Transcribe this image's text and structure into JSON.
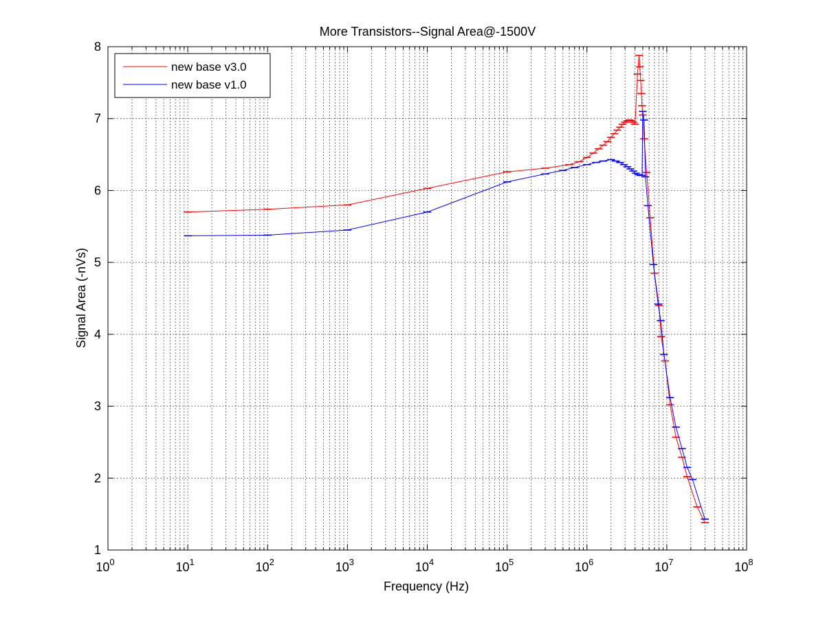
{
  "chart_data": {
    "type": "line",
    "title": "More Transistors--Signal Area@-1500V",
    "xlabel": "Frequency (Hz)",
    "ylabel": "Signal Area (-nVs)",
    "xscale": "log",
    "xlim": [
      1,
      100000000
    ],
    "ylim": [
      1,
      8
    ],
    "grid": true,
    "legend_position": "top-left",
    "x_ticks": [
      {
        "value": 1,
        "base": "10",
        "exp": "0"
      },
      {
        "value": 10,
        "base": "10",
        "exp": "1"
      },
      {
        "value": 100,
        "base": "10",
        "exp": "2"
      },
      {
        "value": 1000,
        "base": "10",
        "exp": "3"
      },
      {
        "value": 10000,
        "base": "10",
        "exp": "4"
      },
      {
        "value": 100000,
        "base": "10",
        "exp": "5"
      },
      {
        "value": 1000000,
        "base": "10",
        "exp": "6"
      },
      {
        "value": 10000000,
        "base": "10",
        "exp": "7"
      },
      {
        "value": 100000000,
        "base": "10",
        "exp": "8"
      }
    ],
    "y_ticks": [
      1,
      2,
      3,
      4,
      5,
      6,
      7,
      8
    ],
    "series": [
      {
        "name": "new base v3.0",
        "color": "#ff0000",
        "points": [
          [
            10,
            5.7
          ],
          [
            100,
            5.74
          ],
          [
            1000,
            5.8
          ],
          [
            10000,
            6.03
          ],
          [
            100000,
            6.26
          ],
          [
            300000,
            6.31
          ],
          [
            600000,
            6.36
          ],
          [
            800000,
            6.4
          ],
          [
            1000000,
            6.46
          ],
          [
            1200000,
            6.52
          ],
          [
            1400000,
            6.58
          ],
          [
            1600000,
            6.63
          ],
          [
            1800000,
            6.68
          ],
          [
            2000000,
            6.74
          ],
          [
            2200000,
            6.79
          ],
          [
            2400000,
            6.84
          ],
          [
            2600000,
            6.88
          ],
          [
            2800000,
            6.92
          ],
          [
            3000000,
            6.95
          ],
          [
            3200000,
            6.97
          ],
          [
            3400000,
            6.98
          ],
          [
            3600000,
            6.97
          ],
          [
            3800000,
            6.95
          ],
          [
            4000000,
            6.92
          ],
          [
            4300000,
            7.62
          ],
          [
            4500000,
            7.88
          ],
          [
            4600000,
            7.72
          ],
          [
            4700000,
            7.53
          ],
          [
            4800000,
            7.35
          ],
          [
            4900000,
            7.18
          ],
          [
            5000000,
            7.05
          ],
          [
            5200000,
            6.72
          ],
          [
            5600000,
            6.25
          ],
          [
            6200000,
            5.62
          ],
          [
            7000000,
            4.85
          ],
          [
            8000000,
            4.4
          ],
          [
            8500000,
            3.97
          ],
          [
            9500000,
            3.63
          ],
          [
            11000000,
            3.02
          ],
          [
            13000000,
            2.57
          ],
          [
            15500000,
            2.29
          ],
          [
            18000000,
            2.02
          ],
          [
            24000000,
            1.6
          ],
          [
            30000000,
            1.38
          ]
        ]
      },
      {
        "name": "new base v1.0",
        "color": "#0000ff",
        "points": [
          [
            10,
            5.37
          ],
          [
            100,
            5.38
          ],
          [
            1000,
            5.45
          ],
          [
            10000,
            5.7
          ],
          [
            100000,
            6.12
          ],
          [
            300000,
            6.23
          ],
          [
            500000,
            6.28
          ],
          [
            700000,
            6.32
          ],
          [
            1000000,
            6.36
          ],
          [
            1300000,
            6.39
          ],
          [
            1600000,
            6.41
          ],
          [
            2000000,
            6.43
          ],
          [
            2300000,
            6.41
          ],
          [
            2600000,
            6.39
          ],
          [
            2900000,
            6.36
          ],
          [
            3200000,
            6.33
          ],
          [
            3500000,
            6.3
          ],
          [
            3800000,
            6.27
          ],
          [
            4100000,
            6.24
          ],
          [
            4400000,
            6.22
          ],
          [
            4700000,
            6.21
          ],
          [
            4900000,
            6.21
          ],
          [
            5000000,
            7.1
          ],
          [
            5200000,
            6.98
          ],
          [
            5400000,
            6.19
          ],
          [
            5800000,
            5.79
          ],
          [
            6800000,
            4.97
          ],
          [
            7800000,
            4.42
          ],
          [
            8400000,
            4.19
          ],
          [
            9200000,
            3.72
          ],
          [
            11000000,
            3.12
          ],
          [
            13000000,
            2.71
          ],
          [
            15500000,
            2.41
          ],
          [
            18000000,
            2.15
          ],
          [
            21000000,
            1.98
          ],
          [
            30000000,
            1.43
          ]
        ]
      }
    ]
  }
}
